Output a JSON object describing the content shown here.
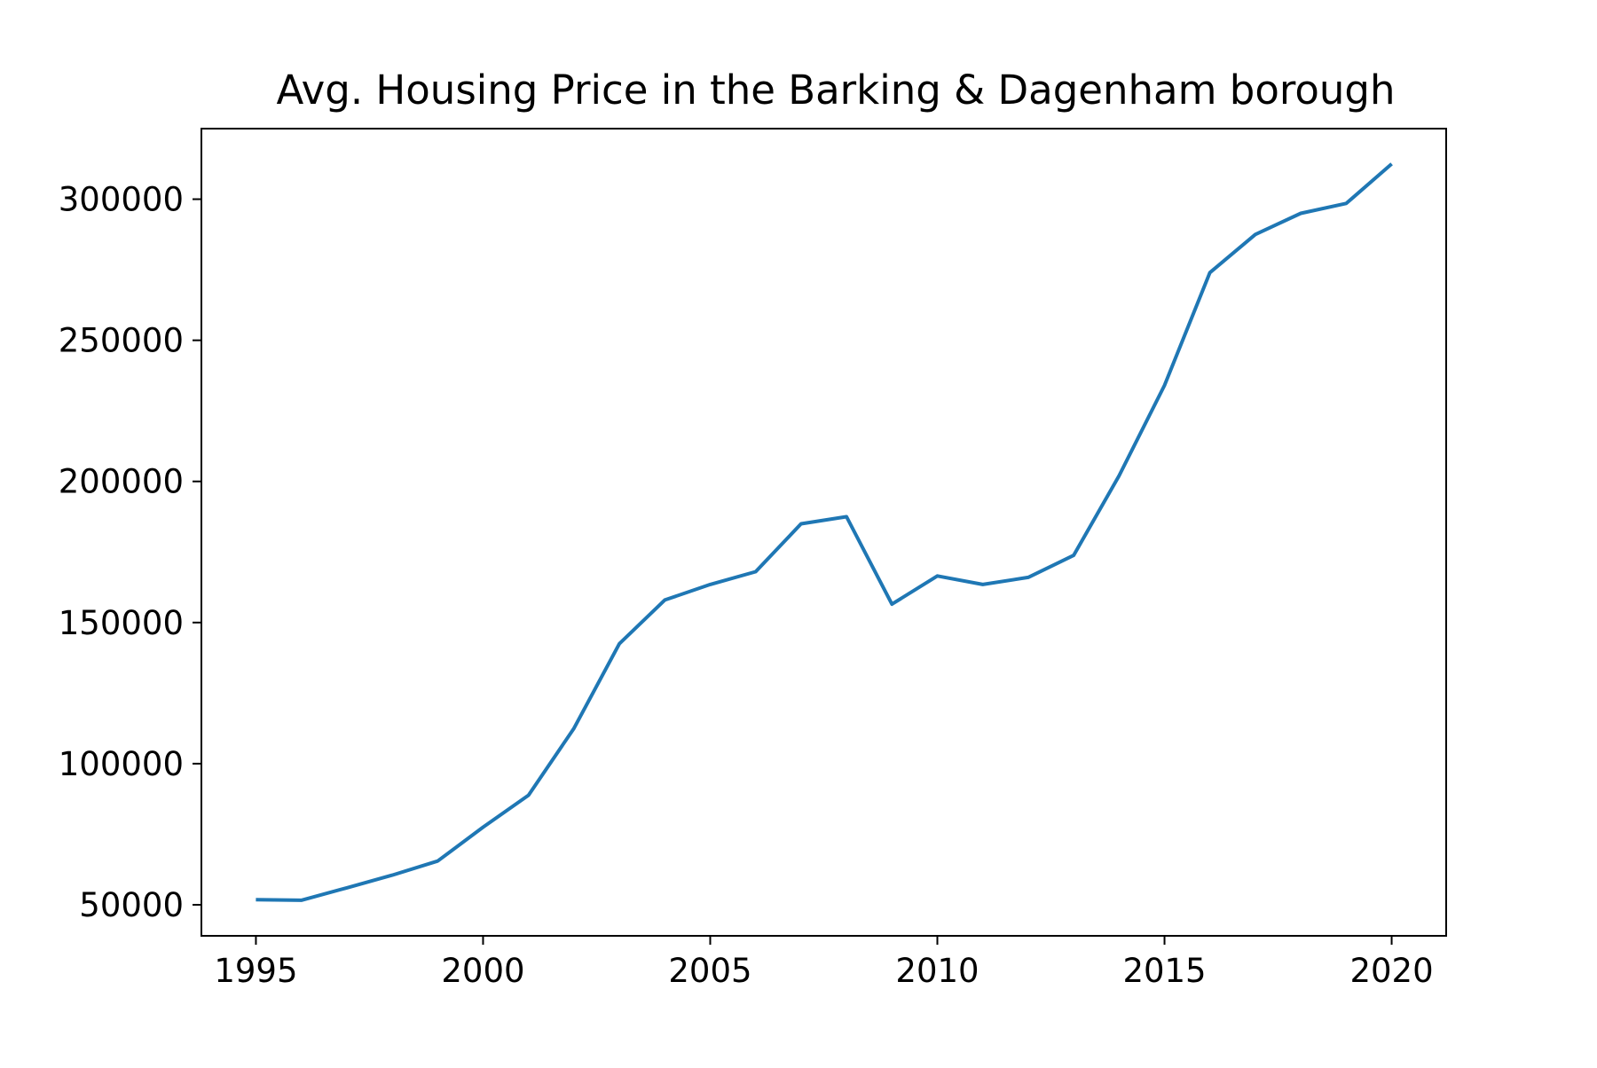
{
  "chart_data": {
    "type": "line",
    "title": "Avg. Housing Price in the Barking & Dagenham borough",
    "xlabel": "",
    "ylabel": "",
    "xlim": [
      1993.8,
      2021.2
    ],
    "ylim": [
      39000,
      325000
    ],
    "grid": false,
    "legend": "none",
    "line_color": "#1f77b4",
    "x_ticks": [
      1995,
      2000,
      2005,
      2010,
      2015,
      2020
    ],
    "x_tick_labels": [
      "1995",
      "2000",
      "2005",
      "2010",
      "2015",
      "2020"
    ],
    "y_ticks": [
      50000,
      100000,
      150000,
      200000,
      250000,
      300000
    ],
    "y_tick_labels": [
      "50000",
      "100000",
      "150000",
      "200000",
      "250000",
      "300000"
    ],
    "series": [
      {
        "x": [
          1995,
          1996,
          1997,
          1998,
          1999,
          2000,
          2001,
          2002,
          2003,
          2004,
          2005,
          2006,
          2007,
          2008,
          2009,
          2010,
          2011,
          2012,
          2013,
          2014,
          2015,
          2016,
          2017,
          2018,
          2019,
          2020
        ],
        "y": [
          51800,
          51600,
          56000,
          60500,
          65500,
          77500,
          88800,
          112500,
          142500,
          158000,
          163500,
          168000,
          185000,
          187500,
          156500,
          166500,
          163500,
          166000,
          173800,
          202000,
          234000,
          274000,
          287500,
          295000,
          298500,
          312500
        ]
      }
    ]
  }
}
